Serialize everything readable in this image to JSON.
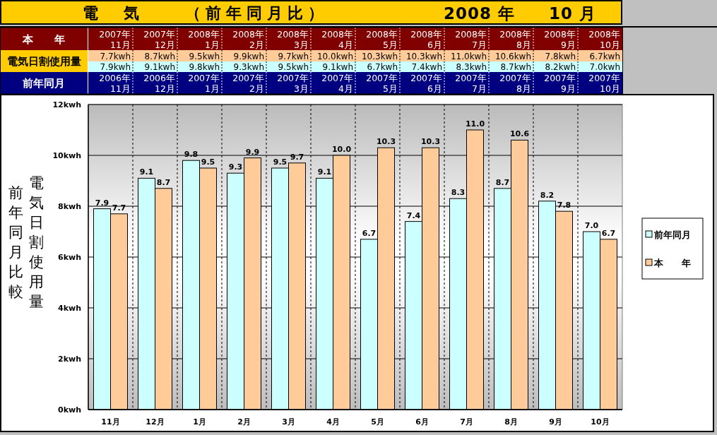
{
  "chart_data": {
    "type": "bar",
    "title": "電　気　　（前年同月比）",
    "subtitle": "2008 年　　10 月",
    "ylabel": "電気日割使用量",
    "categories": [
      "11月",
      "12月",
      "1月",
      "2月",
      "3月",
      "4月",
      "5月",
      "6月",
      "7月",
      "8月",
      "9月",
      "10月"
    ],
    "series": [
      {
        "name": "前年同月",
        "color": "#ccffff",
        "values": [
          7.9,
          9.1,
          9.8,
          9.3,
          9.5,
          9.1,
          6.7,
          7.4,
          8.3,
          8.7,
          8.2,
          7.0
        ],
        "value_labels": [
          "7.9",
          "9.1",
          "9.8",
          "9.3",
          "9.5",
          "9.1",
          "6.7",
          "7.4",
          "8.3",
          "8.7",
          "8.2",
          "7.0"
        ]
      },
      {
        "name": "本　　年",
        "color": "#ffcc99",
        "values": [
          7.7,
          8.7,
          9.5,
          9.9,
          9.7,
          10.0,
          10.3,
          10.3,
          11.0,
          10.6,
          7.8,
          6.7
        ],
        "value_labels": [
          "7.7",
          "8.7",
          "9.5",
          "9.9",
          "9.7",
          "10.0",
          "10.3",
          "10.3",
          "11.0",
          "10.6",
          "7.8",
          "6.7"
        ]
      }
    ],
    "ylim": [
      0,
      12
    ],
    "yticks": [
      {
        "value": 0,
        "label": "0kwh"
      },
      {
        "value": 2,
        "label": "2kwh"
      },
      {
        "value": 4,
        "label": "4kwh"
      },
      {
        "value": 6,
        "label": "6kwh"
      },
      {
        "value": 8,
        "label": "8kwh"
      },
      {
        "value": 10,
        "label": "10kwh"
      },
      {
        "value": 12,
        "label": "12kwh"
      }
    ],
    "grid": true,
    "legend": "right",
    "annotations": [
      "2007年\n11月",
      "2007年\n12月",
      "2008年\n1月",
      "2008年\n2月",
      "2008年\n3月",
      "2008年\n4月",
      "2008年\n5月",
      "2008年\n6月",
      "2008年\n7月",
      "2008年\n8月",
      "2008年\n9月",
      "2008年\n10月",
      "7.7kwh",
      "8.7kwh",
      "9.5kwh",
      "9.9kwh",
      "9.7kwh",
      "10.0kwh",
      "10.3kwh",
      "10.3kwh",
      "11.0kwh",
      "10.6kwh",
      "7.8kwh",
      "6.7kwh",
      "7.9kwh",
      "9.1kwh",
      "9.8kwh",
      "9.3kwh",
      "9.5kwh",
      "9.1kwh",
      "6.7kwh",
      "7.4kwh",
      "8.3kwh",
      "8.7kwh",
      "8.2kwh",
      "7.0kwh",
      "2006年\n11月",
      "2006年\n12月",
      "2007年\n1月",
      "2007年\n2月",
      "2007年\n3月",
      "2007年\n4月",
      "2007年\n5月",
      "2007年\n6月",
      "2007年\n7月",
      "2007年\n8月",
      "2007年\n9月",
      "2007年\n10月",
      "電気日割使用量",
      "前年同月比較"
    ]
  }
}
